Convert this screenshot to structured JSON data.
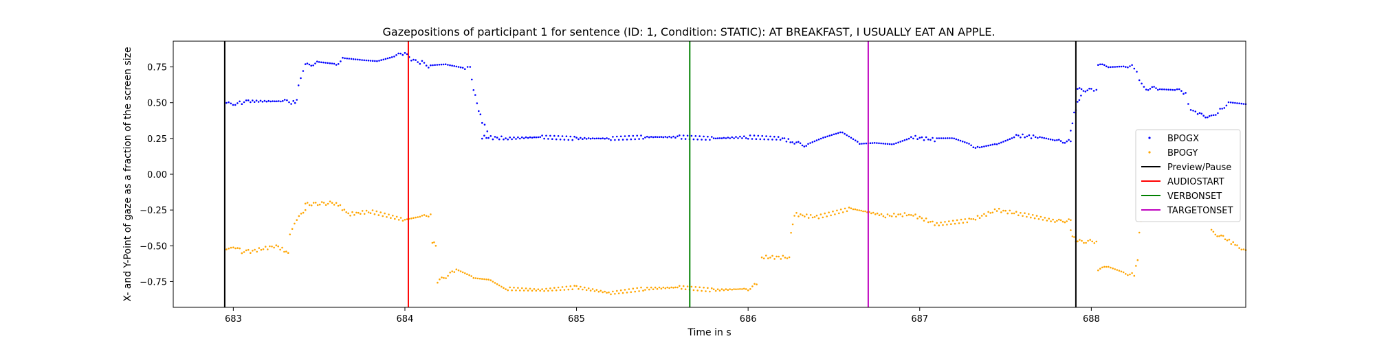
{
  "chart_data": {
    "type": "scatter",
    "title": "Gazepositions of participant 1 for sentence (ID: 1, Condition: STATIC):   AT BREAKFAST, I USUALLY EAT AN APPLE.",
    "xlabel": "Time in s",
    "ylabel": "X- and Y-Point of gaze as a fraction of the screen size",
    "xlim": [
      682.65,
      688.9
    ],
    "ylim": [
      -0.93,
      0.93
    ],
    "xticks": [
      683,
      684,
      685,
      686,
      687,
      688
    ],
    "yticks": [
      0.75,
      0.5,
      0.25,
      0.0,
      -0.25,
      -0.5,
      -0.75
    ],
    "ytick_labels": [
      "0.75",
      "0.50",
      "0.25",
      "0.00",
      "−0.25",
      "−0.50",
      "−0.75"
    ],
    "grid": false,
    "legend_position": "right",
    "series": [
      {
        "name": "BPOGX",
        "color": "#0000ff",
        "segments": [
          {
            "x": [
              682.96,
              683.05,
              683.1,
              683.3,
              683.35,
              683.37
            ],
            "y": [
              0.49,
              0.5,
              0.51,
              0.51,
              0.5,
              0.52
            ]
          },
          {
            "x": [
              683.38,
              683.42,
              683.5,
              683.6,
              683.65,
              683.75,
              683.85,
              683.95,
              684.0,
              684.05,
              684.1,
              684.15,
              684.25,
              684.35,
              684.38
            ],
            "y": [
              0.62,
              0.76,
              0.78,
              0.77,
              0.82,
              0.81,
              0.8,
              0.83,
              0.84,
              0.79,
              0.78,
              0.75,
              0.76,
              0.74,
              0.75
            ]
          },
          {
            "x": [
              684.39,
              684.41,
              684.43,
              684.45,
              684.48
            ],
            "y": [
              0.65,
              0.55,
              0.45,
              0.37,
              0.3
            ]
          },
          {
            "x": [
              684.45,
              684.6,
              684.8,
              685.0,
              685.2,
              685.4,
              685.6,
              685.8,
              686.0,
              686.2,
              686.27,
              686.35,
              686.45,
              686.55,
              686.65,
              686.75,
              686.85,
              686.95,
              687.1,
              687.2,
              687.3,
              687.35,
              687.45,
              687.55,
              687.7,
              687.8,
              687.88
            ],
            "y": [
              0.26,
              0.25,
              0.26,
              0.25,
              0.25,
              0.26,
              0.26,
              0.25,
              0.26,
              0.25,
              0.22,
              0.2,
              0.25,
              0.29,
              0.22,
              0.23,
              0.22,
              0.26,
              0.24,
              0.24,
              0.2,
              0.19,
              0.22,
              0.27,
              0.26,
              0.23,
              0.23
            ]
          },
          {
            "x": [
              687.88,
              687.9,
              687.92,
              687.94
            ],
            "y": [
              0.3,
              0.42,
              0.5,
              0.55
            ]
          },
          {
            "x": [
              687.92,
              688.0,
              688.03
            ],
            "y": [
              0.59,
              0.59,
              0.59
            ]
          },
          {
            "x": [
              688.04,
              688.1,
              688.2,
              688.25,
              688.28,
              688.32,
              688.4,
              688.5,
              688.55,
              688.58,
              688.62,
              688.7,
              688.75,
              688.8,
              688.9
            ],
            "y": [
              0.76,
              0.75,
              0.76,
              0.75,
              0.66,
              0.6,
              0.6,
              0.59,
              0.56,
              0.44,
              0.42,
              0.4,
              0.45,
              0.5,
              0.49
            ]
          }
        ]
      },
      {
        "name": "BPOGY",
        "color": "#ffa500",
        "segments": [
          {
            "x": [
              682.96,
              683.0,
              683.05,
              683.1,
              683.25,
              683.32
            ],
            "y": [
              -0.53,
              -0.5,
              -0.54,
              -0.54,
              -0.5,
              -0.55
            ]
          },
          {
            "x": [
              683.33,
              683.37,
              683.42
            ],
            "y": [
              -0.43,
              -0.32,
              -0.25
            ]
          },
          {
            "x": [
              683.42,
              683.6,
              683.67,
              683.8,
              684.0,
              684.1,
              684.15
            ],
            "y": [
              -0.21,
              -0.2,
              -0.28,
              -0.26,
              -0.32,
              -0.3,
              -0.28
            ]
          },
          {
            "x": [
              684.16,
              684.18
            ],
            "y": [
              -0.47,
              -0.5
            ]
          },
          {
            "x": [
              684.19,
              684.3,
              684.4,
              684.5,
              684.6,
              684.8,
              685.0,
              685.2,
              685.4,
              685.6,
              685.8,
              686.0,
              686.05
            ],
            "y": [
              -0.75,
              -0.67,
              -0.72,
              -0.73,
              -0.8,
              -0.81,
              -0.79,
              -0.83,
              -0.8,
              -0.79,
              -0.81,
              -0.8,
              -0.77
            ]
          },
          {
            "x": [
              686.08,
              686.24
            ],
            "y": [
              -0.58,
              -0.58
            ]
          },
          {
            "x": [
              686.25,
              686.26
            ],
            "y": [
              -0.41,
              -0.35
            ]
          },
          {
            "x": [
              686.27,
              686.4,
              686.6,
              686.8,
              686.95,
              687.1,
              687.3,
              687.45,
              687.6,
              687.8,
              687.88
            ],
            "y": [
              -0.28,
              -0.3,
              -0.24,
              -0.29,
              -0.28,
              -0.35,
              -0.32,
              -0.25,
              -0.28,
              -0.33,
              -0.32
            ]
          },
          {
            "x": [
              687.88,
              687.9,
              687.92
            ],
            "y": [
              -0.4,
              -0.45,
              -0.47
            ]
          },
          {
            "x": [
              687.92,
              688.03
            ],
            "y": [
              -0.47,
              -0.47
            ]
          },
          {
            "x": [
              688.04,
              688.1,
              688.2,
              688.25,
              688.27
            ],
            "y": [
              -0.67,
              -0.65,
              -0.69,
              -0.7,
              -0.6
            ]
          },
          {
            "x": [
              688.28,
              688.3,
              688.33,
              688.36
            ],
            "y": [
              -0.4,
              -0.27,
              -0.14,
              -0.13
            ]
          },
          {
            "x": [
              688.7,
              688.78,
              688.85,
              688.9
            ],
            "y": [
              -0.4,
              -0.45,
              -0.5,
              -0.53
            ]
          }
        ]
      }
    ],
    "vlines": [
      {
        "name": "Preview/Pause",
        "x": 682.95,
        "color": "#000000"
      },
      {
        "name": "AUDIOSTART",
        "x": 684.02,
        "color": "#ff0000"
      },
      {
        "name": "VERBONSET",
        "x": 685.66,
        "color": "#008000"
      },
      {
        "name": "TARGETONSET",
        "x": 686.7,
        "color": "#bf00bf"
      },
      {
        "name": "Preview/Pause",
        "x": 687.91,
        "color": "#000000"
      }
    ],
    "legend": [
      {
        "label": "BPOGX",
        "kind": "marker",
        "color": "#0000ff"
      },
      {
        "label": "BPOGY",
        "kind": "marker",
        "color": "#ffa500"
      },
      {
        "label": "Preview/Pause",
        "kind": "line",
        "color": "#000000"
      },
      {
        "label": "AUDIOSTART",
        "kind": "line",
        "color": "#ff0000"
      },
      {
        "label": "VERBONSET",
        "kind": "line",
        "color": "#008000"
      },
      {
        "label": "TARGETONSET",
        "kind": "line",
        "color": "#bf00bf"
      }
    ]
  }
}
